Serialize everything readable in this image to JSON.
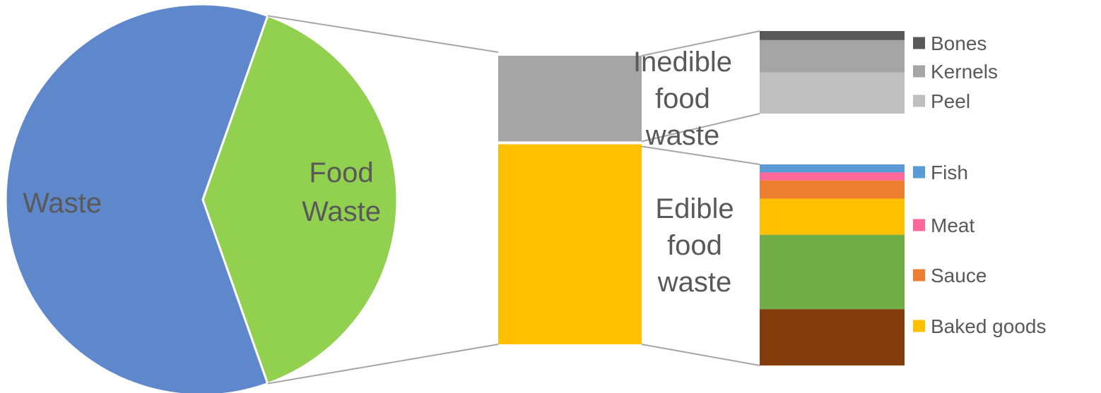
{
  "chart_data": [
    {
      "type": "pie",
      "categories": [
        "Waste",
        "Food Waste"
      ],
      "values": [
        61,
        39
      ],
      "colors": [
        "#5f87cb",
        "#92d050"
      ],
      "labels": [
        [
          "Waste"
        ],
        [
          "Food",
          "Waste"
        ]
      ]
    },
    {
      "type": "bar",
      "stacked": true,
      "description": "Breakdown of food waste",
      "categories": [
        "Edible food waste",
        "Inedible food waste"
      ],
      "values": [
        70,
        30
      ],
      "colors": [
        "#ffc000",
        "#a5a5a5"
      ],
      "labels": [
        [
          "Edible",
          "food",
          "waste"
        ],
        [
          "Inedible",
          "food",
          "waste"
        ]
      ]
    },
    {
      "type": "bar",
      "stacked": true,
      "description": "Breakdown of inedible food waste",
      "series": [
        {
          "name": "Bones",
          "value": 11,
          "color": "#595959"
        },
        {
          "name": "Kernels",
          "value": 39,
          "color": "#a5a5a5"
        },
        {
          "name": "Peel",
          "value": 50,
          "color": "#bfbfbf"
        }
      ]
    },
    {
      "type": "bar",
      "stacked": true,
      "description": "Breakdown of edible food waste",
      "series": [
        {
          "name": "Fish",
          "value": 4,
          "color": "#5b9bd5",
          "legend": true
        },
        {
          "name": "Meat",
          "value": 4,
          "color": "#ff6699",
          "legend": true
        },
        {
          "name": "Sauce",
          "value": 9,
          "color": "#ed7d31",
          "legend": true
        },
        {
          "name": "Baked goods",
          "value": 18,
          "color": "#ffc000",
          "legend": true
        },
        {
          "name": "",
          "value": 37,
          "color": "#70ad47",
          "legend": false
        },
        {
          "name": "",
          "value": 28,
          "color": "#843c0c",
          "legend": false
        }
      ]
    }
  ]
}
